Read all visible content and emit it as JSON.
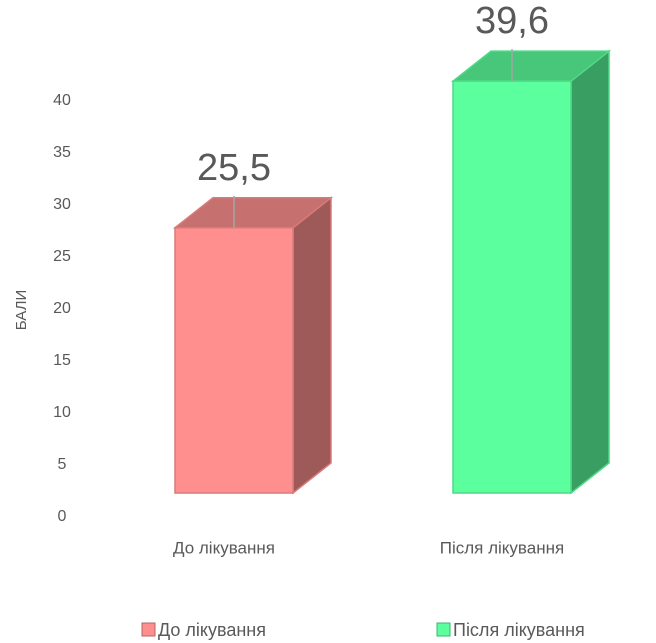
{
  "chart_data": {
    "type": "bar3d",
    "y_label": "БАЛИ",
    "categories": [
      "До лікування",
      "Після лікування"
    ],
    "values": [
      25.5,
      39.6
    ],
    "value_labels": [
      "25,5",
      "39,6"
    ],
    "colors": [
      "#ff8f8f",
      "#5cff9e"
    ],
    "ylim": [
      0,
      40
    ],
    "yticks": [
      0,
      5,
      10,
      15,
      20,
      25,
      30,
      35,
      40
    ]
  }
}
